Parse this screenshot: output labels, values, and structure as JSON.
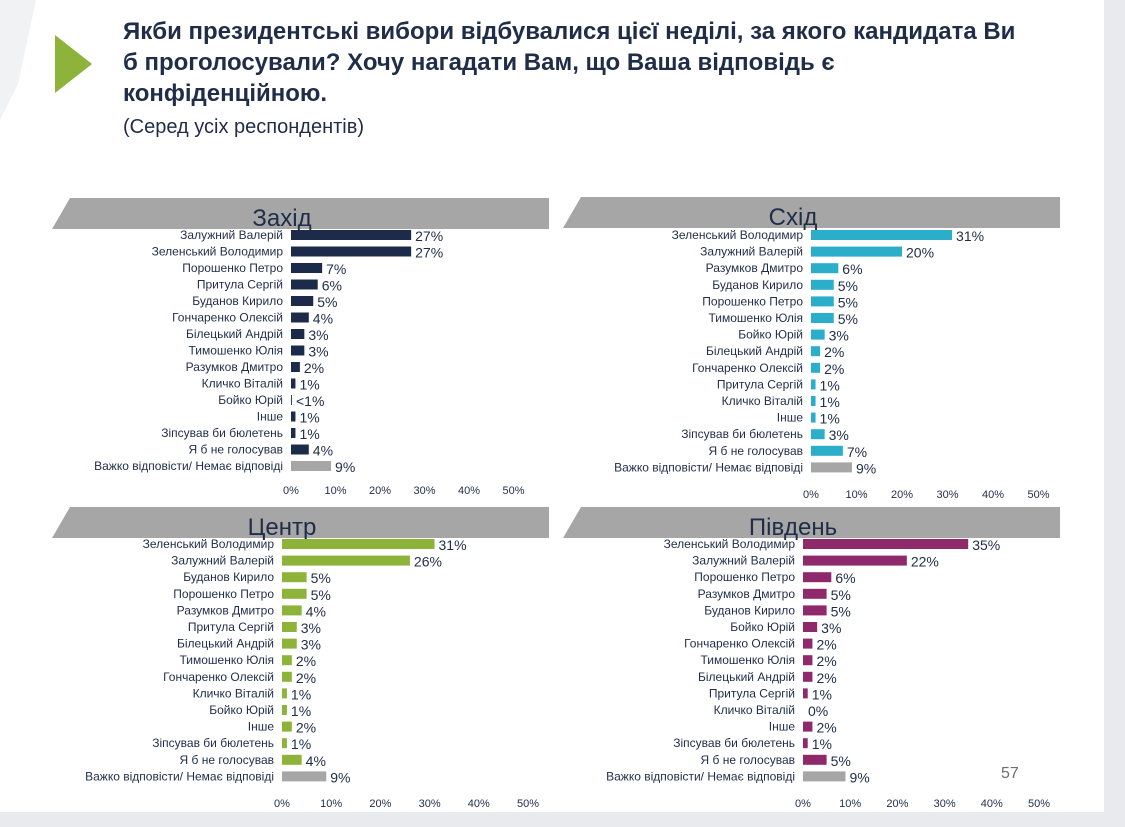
{
  "title": "Якби президентські вибори відбувалися цієї неділі, за якого кандидата Ви б проголосували? Хочу нагадати Вам, що Ваша відповідь є конфіденційною.",
  "subtitle": "(Серед усіх респондентів)",
  "page_number": "57",
  "colors": {
    "arrow": "#8db33a",
    "header_band": "#a6a6a6",
    "other_bar": "#a6a6a6",
    "text": "#1f2d48"
  },
  "chart_data": [
    {
      "type": "bar",
      "orientation": "horizontal",
      "title": "Захід",
      "color": "#1c2b4a",
      "xlim": [
        0,
        50
      ],
      "x_ticks": [
        "0%",
        "10%",
        "20%",
        "30%",
        "40%",
        "50%"
      ],
      "categories": [
        "Залужний Валерій",
        "Зеленський Володимир",
        "Порошенко Петро",
        "Притула Сергій",
        "Буданов Кирило",
        "Гончаренко Олексій",
        "Білецький Андрій",
        "Тимошенко Юлія",
        "Разумков Дмитро",
        "Кличко Віталій",
        "Бойко Юрій",
        "Інше",
        "Зіпсував би бюлетень",
        "Я б не голосував",
        "Важко відповісти/ Немає відповіді"
      ],
      "values": [
        27,
        27,
        7,
        6,
        5,
        4,
        3,
        3,
        2,
        1,
        0.2,
        1,
        1,
        4,
        9
      ],
      "labels": [
        "27%",
        "27%",
        "7%",
        "6%",
        "5%",
        "4%",
        "3%",
        "3%",
        "2%",
        "1%",
        "<1%",
        "1%",
        "1%",
        "4%",
        "9%"
      ]
    },
    {
      "type": "bar",
      "orientation": "horizontal",
      "title": "Схід",
      "color": "#2aaec9",
      "xlim": [
        0,
        50
      ],
      "x_ticks": [
        "0%",
        "10%",
        "20%",
        "30%",
        "40%",
        "50%"
      ],
      "categories": [
        "Зеленський Володимир",
        "Залужний Валерій",
        "Разумков Дмитро",
        "Буданов Кирило",
        "Порошенко Петро",
        "Тимошенко Юлія",
        "Бойко Юрій",
        "Білецький Андрій",
        "Гончаренко Олексій",
        "Притула Сергій",
        "Кличко Віталій",
        "Інше",
        "Зіпсував би бюлетень",
        "Я б не голосував",
        "Важко відповісти/ Немає відповіді"
      ],
      "values": [
        31,
        20,
        6,
        5,
        5,
        5,
        3,
        2,
        2,
        1,
        1,
        1,
        3,
        7,
        9
      ],
      "labels": [
        "31%",
        "20%",
        "6%",
        "5%",
        "5%",
        "5%",
        "3%",
        "2%",
        "2%",
        "1%",
        "1%",
        "1%",
        "3%",
        "7%",
        "9%"
      ]
    },
    {
      "type": "bar",
      "orientation": "horizontal",
      "title": "Центр",
      "color": "#8db33a",
      "xlim": [
        0,
        50
      ],
      "x_ticks": [
        "0%",
        "10%",
        "20%",
        "30%",
        "40%",
        "50%"
      ],
      "categories": [
        "Зеленський Володимир",
        "Залужний Валерій",
        "Буданов Кирило",
        "Порошенко Петро",
        "Разумков Дмитро",
        "Притула Сергій",
        "Білецький Андрій",
        "Тимошенко Юлія",
        "Гончаренко Олексій",
        "Кличко Віталій",
        "Бойко Юрій",
        "Інше",
        "Зіпсував би бюлетень",
        "Я б не голосував",
        "Важко відповісти/ Немає відповіді"
      ],
      "values": [
        31,
        26,
        5,
        5,
        4,
        3,
        3,
        2,
        2,
        1,
        1,
        2,
        1,
        4,
        9
      ],
      "labels": [
        "31%",
        "26%",
        "5%",
        "5%",
        "4%",
        "3%",
        "3%",
        "2%",
        "2%",
        "1%",
        "1%",
        "2%",
        "1%",
        "4%",
        "9%"
      ]
    },
    {
      "type": "bar",
      "orientation": "horizontal",
      "title": "Південь",
      "color": "#8e2a6b",
      "xlim": [
        0,
        50
      ],
      "x_ticks": [
        "0%",
        "10%",
        "20%",
        "30%",
        "40%",
        "50%"
      ],
      "categories": [
        "Зеленський Володимир",
        "Залужний Валерій",
        "Порошенко Петро",
        "Разумков Дмитро",
        "Буданов Кирило",
        "Бойко Юрій",
        "Гончаренко Олексій",
        "Тимошенко Юлія",
        "Білецький Андрій",
        "Притула Сергій",
        "Кличко Віталій",
        "Інше",
        "Зіпсував би бюлетень",
        "Я б не голосував",
        "Важко відповісти/ Немає відповіді"
      ],
      "values": [
        35,
        22,
        6,
        5,
        5,
        3,
        2,
        2,
        2,
        1,
        0,
        2,
        1,
        5,
        9
      ],
      "labels": [
        "35%",
        "22%",
        "6%",
        "5%",
        "5%",
        "3%",
        "2%",
        "2%",
        "2%",
        "1%",
        "0%",
        "2%",
        "1%",
        "5%",
        "9%"
      ]
    }
  ]
}
